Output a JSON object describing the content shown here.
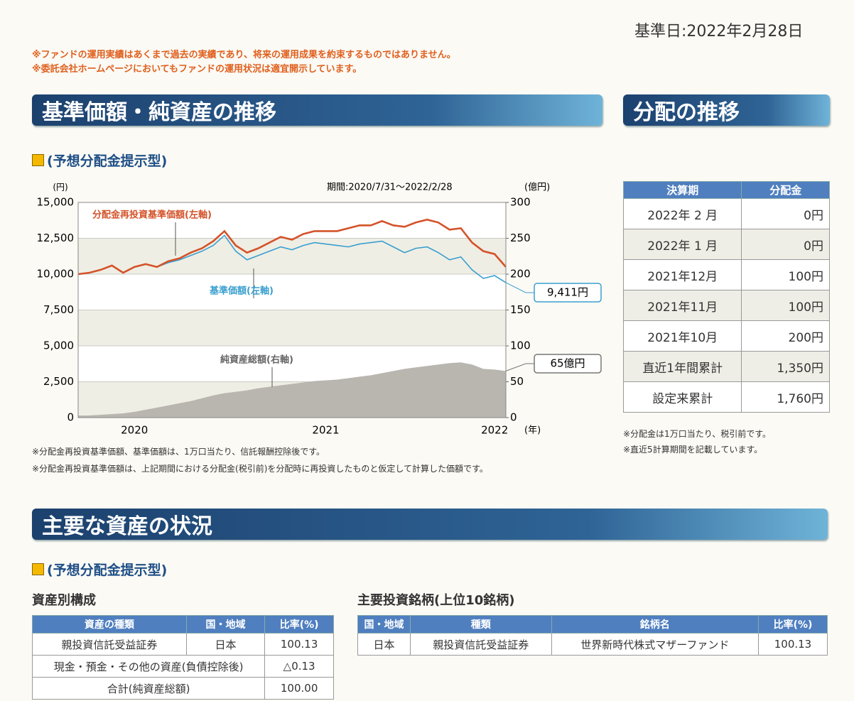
{
  "header": {
    "date": "基準日:2022年2月28日",
    "notes": [
      "※ファンドの運用実績はあくまで過去の実績であり、将来の運用成果を約束するものではありません。",
      "※委託会社ホームページにおいてもファンドの運用状況は適宜開示しています。"
    ]
  },
  "nav_section": {
    "title": "基準価額・純資産の推移",
    "subtitle": "(予想分配金提示型)",
    "notes": [
      "※分配金再投資基準価額、基準価額は、1万口当たり、信託報酬控除後です。",
      "※分配金再投資基準価額は、上記期間における分配金(税引前)を分配時に再投資したものと仮定して計算した価額です。"
    ]
  },
  "chart_data": {
    "type": "line",
    "period": "期間:2020/7/31～2022/2/28",
    "y_unit": "(円)",
    "y2_unit": "(億円)",
    "x_unit": "(年)",
    "categories": [
      null,
      null,
      null,
      null,
      null,
      "2020",
      null,
      null,
      null,
      null,
      null,
      null,
      null,
      null,
      null,
      null,
      null,
      null,
      null,
      null,
      null,
      null,
      "2021",
      null,
      null,
      null,
      null,
      null,
      null,
      null,
      null,
      null,
      null,
      null,
      null,
      null,
      null,
      "2022",
      null
    ],
    "ylim": [
      0,
      15000
    ],
    "yticks": [
      0,
      {
        "value": 2500,
        "label": "2,500"
      },
      {
        "value": 5000,
        "label": "5,000"
      },
      {
        "value": 7500,
        "label": "7,500"
      },
      {
        "value": 10000,
        "label": "10,000"
      },
      {
        "value": 12500,
        "label": "12,500"
      },
      {
        "value": 15000,
        "label": "15,000"
      }
    ],
    "y2lim": [
      0,
      300
    ],
    "y2ticks": [
      0,
      50,
      100,
      150,
      200,
      250,
      300
    ],
    "series": [
      {
        "name": "純資産総額(右軸)",
        "type": "area",
        "axis": "y2",
        "color": "#b9b6b0",
        "values": [
          3,
          3,
          4,
          5,
          6,
          8,
          11,
          14,
          17,
          20,
          23,
          27,
          31,
          34,
          36,
          38,
          41,
          43,
          45,
          47,
          49,
          51,
          52,
          53,
          55,
          57,
          59,
          62,
          65,
          68,
          70,
          72,
          74,
          76,
          77,
          74,
          68,
          67,
          65
        ]
      },
      {
        "name": "基準価額(左軸)",
        "type": "line",
        "color": "#3a9fd0",
        "values": [
          10000,
          10100,
          10300,
          10600,
          10100,
          10500,
          10700,
          10500,
          10800,
          11000,
          11300,
          11600,
          12000,
          12700,
          11600,
          11000,
          11300,
          11600,
          11900,
          11700,
          12000,
          12200,
          12100,
          12000,
          11900,
          12100,
          12200,
          12300,
          11900,
          11500,
          11800,
          11900,
          11500,
          11000,
          11200,
          10300,
          9700,
          9900,
          9411
        ]
      },
      {
        "name": "分配金再投資基準価額(左軸)",
        "type": "line",
        "color": "#d4532a",
        "values": [
          10000,
          10100,
          10300,
          10600,
          10100,
          10500,
          10700,
          10500,
          10900,
          11100,
          11500,
          11800,
          12300,
          13000,
          12000,
          11500,
          11800,
          12200,
          12600,
          12400,
          12800,
          13000,
          13000,
          13000,
          13200,
          13400,
          13400,
          13700,
          13400,
          13300,
          13600,
          13800,
          13600,
          13100,
          13200,
          12200,
          11600,
          11400,
          10500
        ]
      }
    ],
    "annotations": [
      "9,411円",
      "65億円"
    ]
  },
  "distribution": {
    "title": "分配の推移",
    "table": {
      "header": [
        "決算期",
        "分配金"
      ],
      "rows": [
        [
          "2022年 2 月",
          "0円"
        ],
        [
          "2022年 1 月",
          "0円"
        ],
        [
          "2021年12月",
          "100円"
        ],
        [
          "2021年11月",
          "100円"
        ],
        [
          "2021年10月",
          "200円"
        ],
        [
          "直近1年間累計",
          "1,350円"
        ],
        [
          "設定来累計",
          "1,760円"
        ]
      ]
    },
    "notes": [
      "※分配金は1万口当たり、税引前です。",
      "※直近5計算期間を記載しています。"
    ]
  },
  "assets": {
    "title": "主要な資産の状況",
    "subtitle": "(予想分配金提示型)",
    "composition": {
      "title": "資産別構成",
      "header": [
        "資産の種類",
        "国・地域",
        "比率(%)"
      ],
      "rows": [
        [
          "親投資信託受益証券",
          "日本",
          "100.13"
        ],
        [
          "現金・預金・その他の資産(負債控除後)",
          "△0.13"
        ],
        [
          "合計(純資産総額)",
          "100.00"
        ]
      ]
    },
    "holdings": {
      "title": "主要投資銘柄(上位10銘柄)",
      "header": [
        "国・地域",
        "種類",
        "銘柄名",
        "比率(%)"
      ],
      "rows": [
        [
          "日本",
          "親投資信託受益証券",
          "世界新時代株式マザーファンド",
          "100.13"
        ]
      ]
    }
  }
}
